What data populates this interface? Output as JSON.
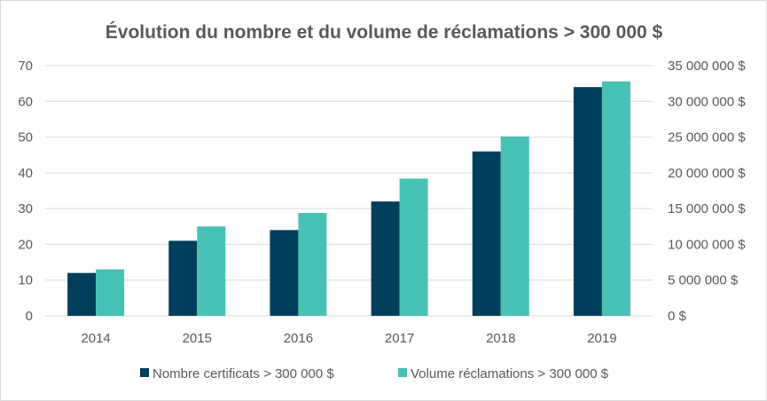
{
  "chart_data": {
    "type": "bar",
    "title": "Évolution du nombre et du volume de réclamations > 300 000 $",
    "categories": [
      "2014",
      "2015",
      "2016",
      "2017",
      "2018",
      "2019"
    ],
    "series": [
      {
        "name": "Nombre certificats > 300 000 $",
        "axis": "left",
        "color": "#003f5c",
        "values": [
          12,
          21,
          24,
          32,
          46,
          64
        ]
      },
      {
        "name": "Volume réclamations > 300 000 $",
        "axis": "right",
        "color": "#48c1b5",
        "values": [
          6500000,
          12500000,
          14400000,
          19200000,
          25100000,
          32800000
        ]
      }
    ],
    "y_left": {
      "min": 0,
      "max": 70,
      "ticks": [
        "0",
        "10",
        "20",
        "30",
        "40",
        "50",
        "60",
        "70"
      ]
    },
    "y_right": {
      "min": 0,
      "max": 35000000,
      "ticks": [
        "0 $",
        "5 000 000 $",
        "10 000 000 $",
        "15 000 000 $",
        "20 000 000 $",
        "25 000 000 $",
        "30 000 000 $",
        "35 000 000 $"
      ]
    },
    "grid": true,
    "legend_position": "bottom"
  }
}
